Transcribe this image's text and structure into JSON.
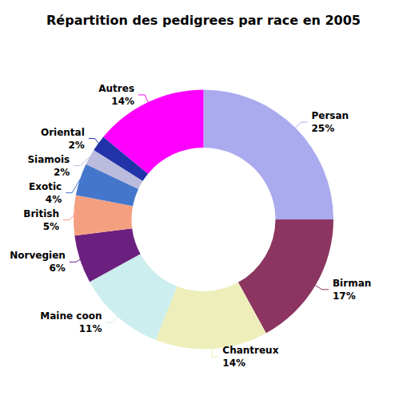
{
  "chart_data": {
    "type": "pie",
    "title": "Répartition des pedigrees par race en 2005",
    "categories": [
      "Persan",
      "Birman",
      "Chantreux",
      "Maine coon",
      "Norvegien",
      "British",
      "Exotic",
      "Siamois",
      "Oriental",
      "Autres"
    ],
    "values": [
      25,
      17,
      14,
      11,
      6,
      5,
      4,
      2,
      2,
      14
    ],
    "value_labels": [
      "25%",
      "17%",
      "14%",
      "11%",
      "6%",
      "5%",
      "4%",
      "2%",
      "2%",
      "14%"
    ],
    "colors": [
      "#aaaaee",
      "#8b3560",
      "#eeeebb",
      "#cceeee",
      "#6b2080",
      "#f4a080",
      "#4477cc",
      "#bbbbdd",
      "#2233aa",
      "#ff00ff"
    ],
    "data_labels": true
  }
}
